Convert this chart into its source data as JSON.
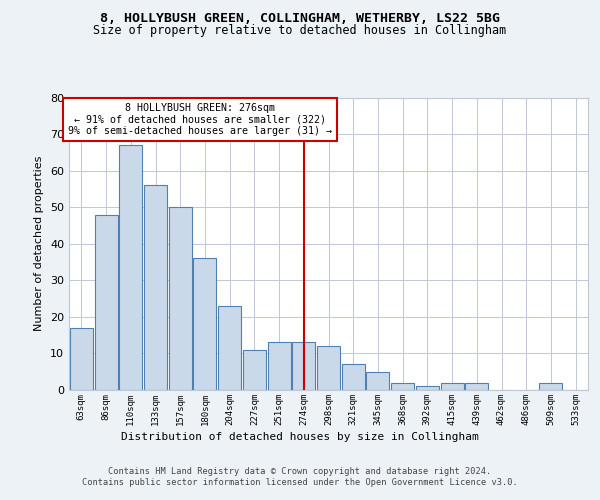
{
  "title1": "8, HOLLYBUSH GREEN, COLLINGHAM, WETHERBY, LS22 5BG",
  "title2": "Size of property relative to detached houses in Collingham",
  "xlabel": "Distribution of detached houses by size in Collingham",
  "ylabel": "Number of detached properties",
  "categories": [
    "63sqm",
    "86sqm",
    "110sqm",
    "133sqm",
    "157sqm",
    "180sqm",
    "204sqm",
    "227sqm",
    "251sqm",
    "274sqm",
    "298sqm",
    "321sqm",
    "345sqm",
    "368sqm",
    "392sqm",
    "415sqm",
    "439sqm",
    "462sqm",
    "486sqm",
    "509sqm",
    "533sqm"
  ],
  "values": [
    17,
    48,
    67,
    56,
    50,
    36,
    23,
    11,
    13,
    13,
    12,
    7,
    5,
    2,
    1,
    2,
    2,
    0,
    0,
    2,
    0
  ],
  "bar_color": "#c9d9ea",
  "bar_edge_color": "#5080b0",
  "vline_x_index": 9,
  "vline_color": "#cc0000",
  "annotation_text": "8 HOLLYBUSH GREEN: 276sqm\n← 91% of detached houses are smaller (322)\n9% of semi-detached houses are larger (31) →",
  "annotation_box_color": "white",
  "annotation_box_edge_color": "#cc0000",
  "ylim": [
    0,
    80
  ],
  "yticks": [
    0,
    10,
    20,
    30,
    40,
    50,
    60,
    70,
    80
  ],
  "footer": "Contains HM Land Registry data © Crown copyright and database right 2024.\nContains public sector information licensed under the Open Government Licence v3.0.",
  "bg_color": "#edf2f7",
  "plot_bg_color": "white",
  "grid_color": "#c0c8d8"
}
